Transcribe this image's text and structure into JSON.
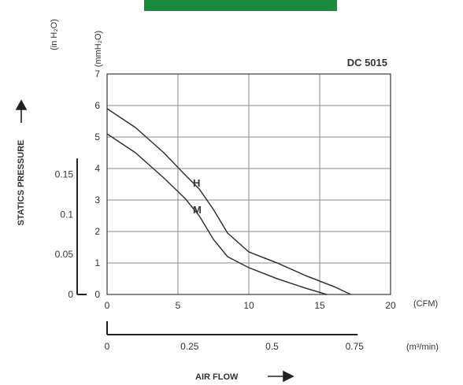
{
  "header_bar_color": "#1a8a3c",
  "chart_data": {
    "type": "line",
    "title": "DC 5015",
    "xlabel": "AIR FLOW",
    "ylabel": "STATICS PRESSURE",
    "x_unit_primary": "(CFM)",
    "x_unit_secondary": "(m³/min)",
    "y_unit_primary": "(mmH₂O)",
    "y_unit_secondary": "(in H₂O)",
    "xlim": [
      0,
      20
    ],
    "ylim": [
      0,
      7
    ],
    "grid": true,
    "x_ticks": [
      "0",
      "5",
      "10",
      "15",
      "20"
    ],
    "y_ticks": [
      "0",
      "1",
      "2",
      "3",
      "4",
      "5",
      "6",
      "7"
    ],
    "x2_ticks": [
      {
        "label": "0",
        "value": 0
      },
      {
        "label": "0.25",
        "value": 0.25
      },
      {
        "label": "0.5",
        "value": 0.5
      },
      {
        "label": "0.75",
        "value": 0.75
      }
    ],
    "y2_ticks": [
      {
        "label": "0",
        "value": 0
      },
      {
        "label": "0.05",
        "value": 0.05
      },
      {
        "label": "0.1",
        "value": 0.1
      },
      {
        "label": "0.15",
        "value": 0.15
      }
    ],
    "series": [
      {
        "name": "H",
        "x": [
          0,
          2,
          4,
          5.5,
          6.5,
          7.5,
          8.5,
          10,
          12,
          14,
          16,
          17.2
        ],
        "y": [
          5.9,
          5.3,
          4.5,
          3.8,
          3.35,
          2.7,
          1.95,
          1.35,
          1.0,
          0.6,
          0.25,
          0.0
        ]
      },
      {
        "name": "M",
        "x": [
          0,
          2,
          4,
          5.5,
          6.5,
          7.5,
          8.5,
          10,
          12,
          14,
          15.5
        ],
        "y": [
          5.1,
          4.5,
          3.7,
          3.05,
          2.5,
          1.75,
          1.2,
          0.85,
          0.5,
          0.2,
          0.0
        ]
      }
    ]
  }
}
